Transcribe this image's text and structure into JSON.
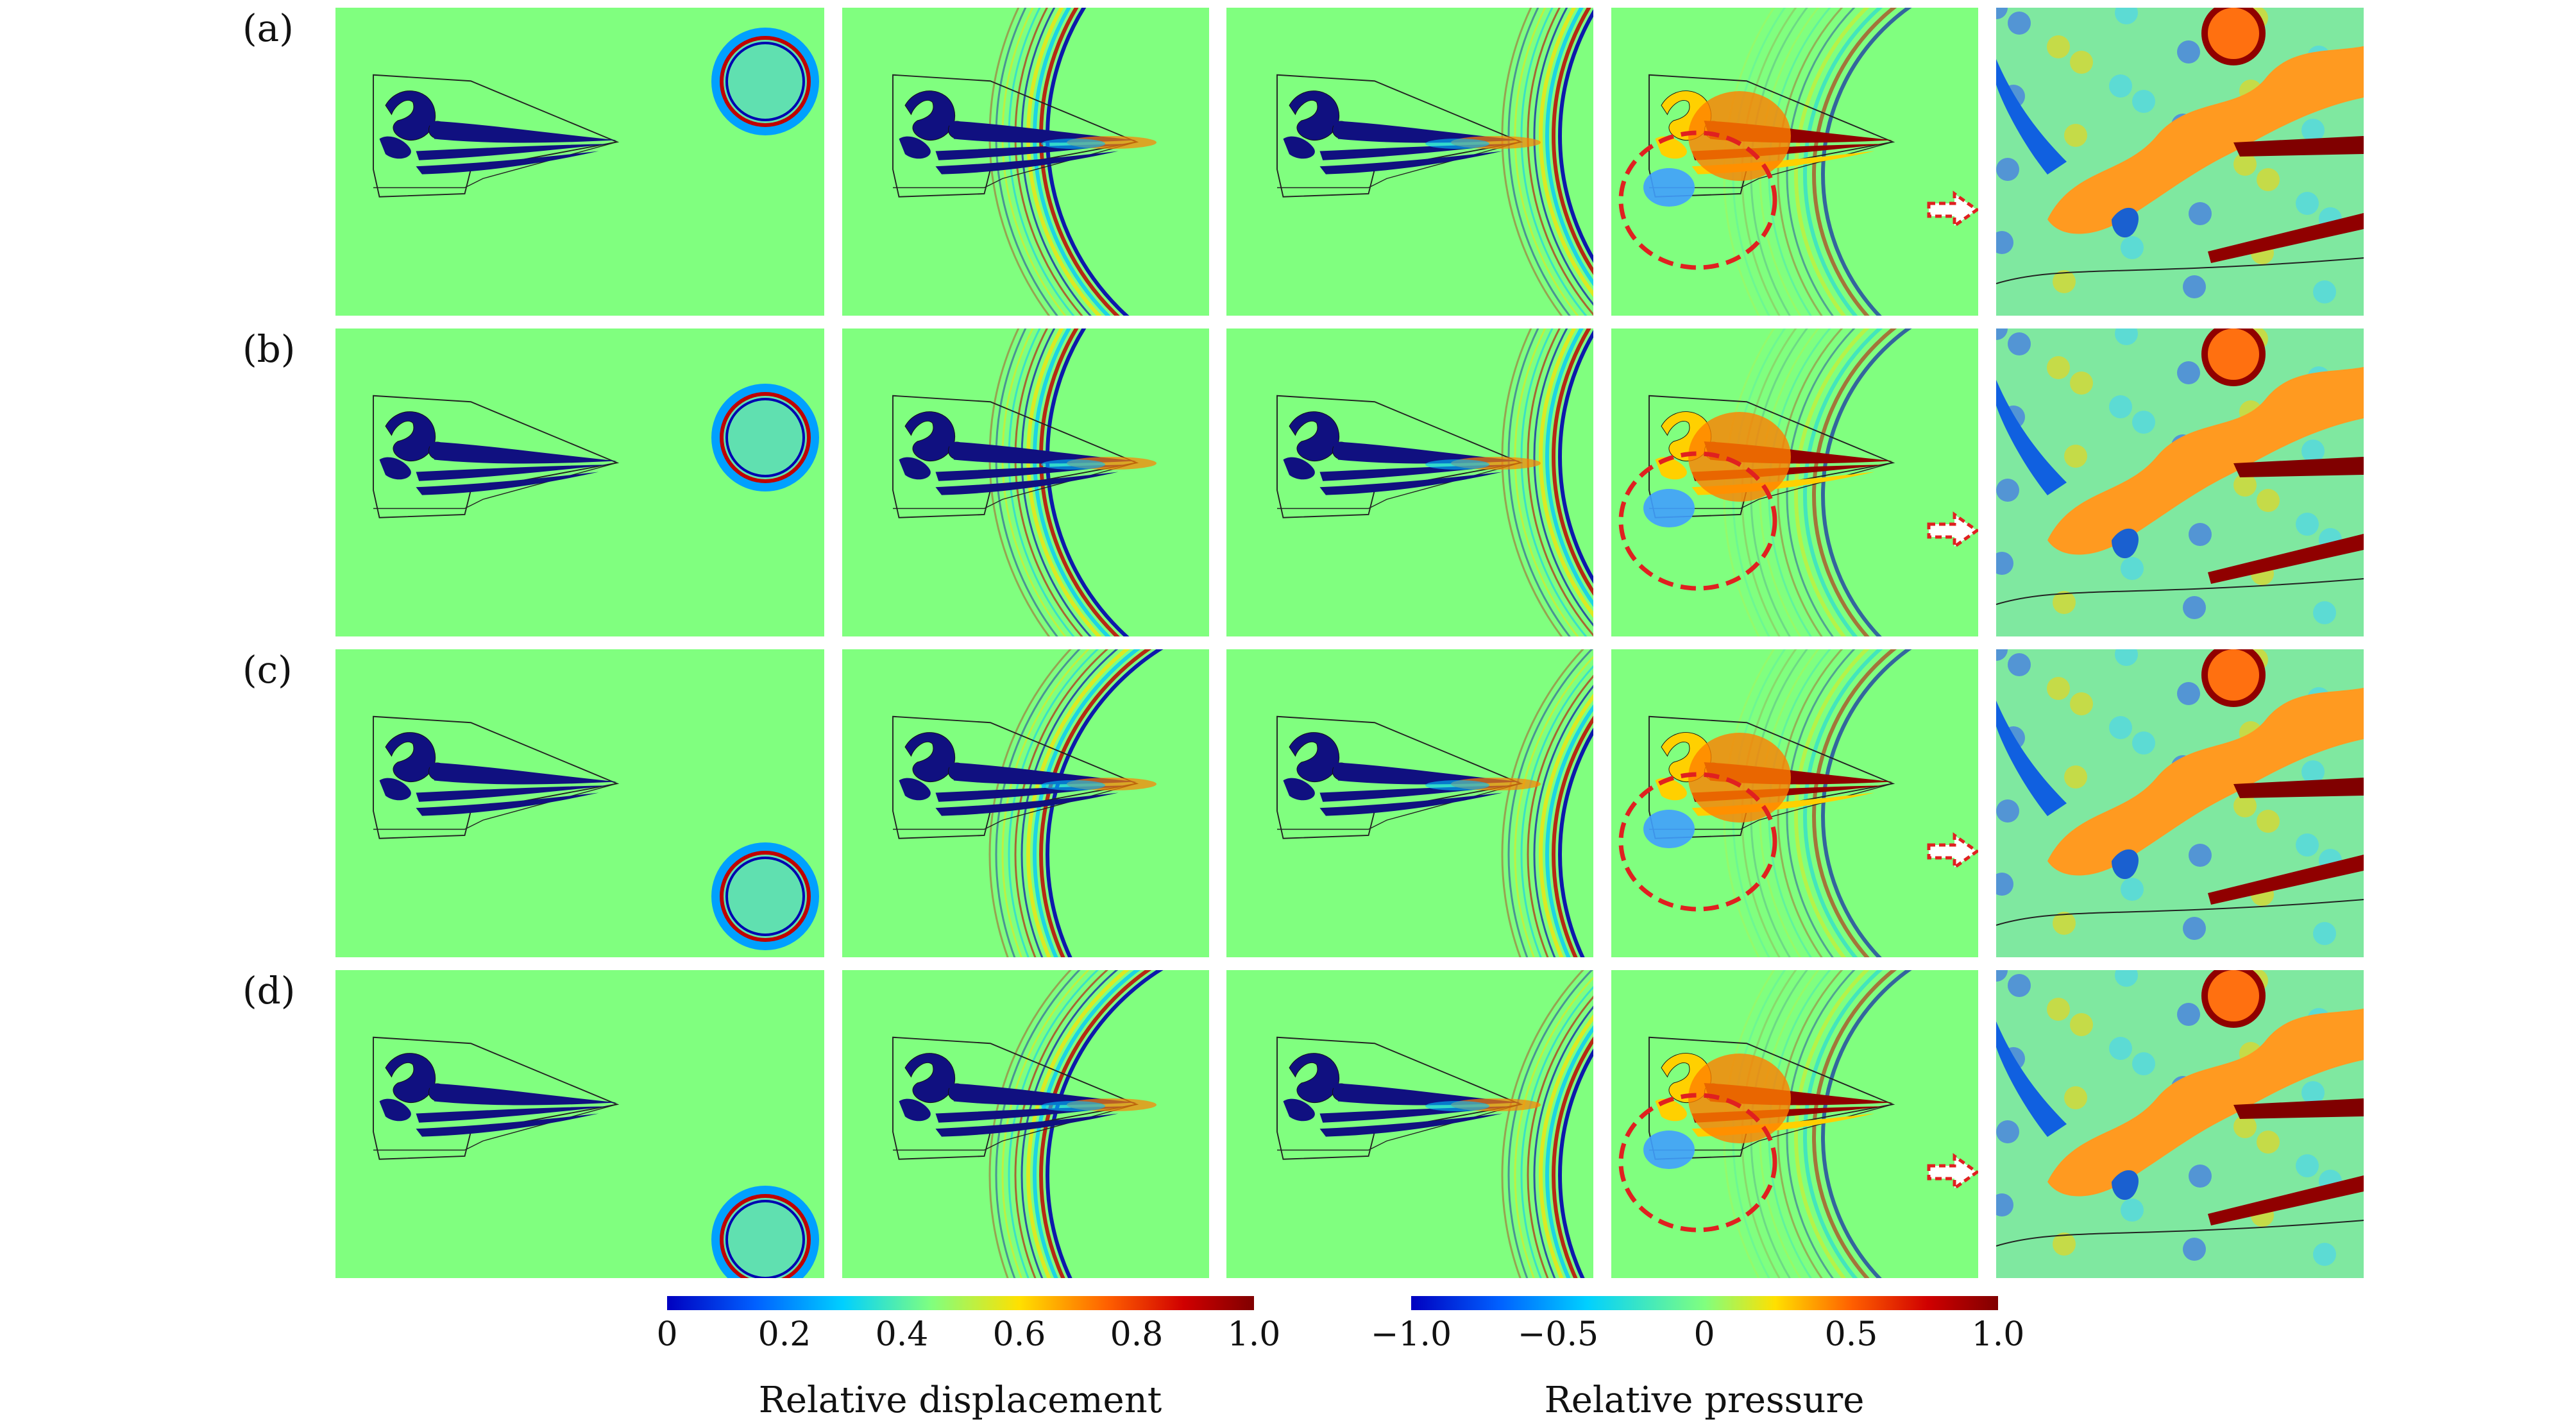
{
  "rows": [
    {
      "label": "(a)"
    },
    {
      "label": "(b)"
    },
    {
      "label": "(c)"
    },
    {
      "label": "(d)"
    }
  ],
  "colorbars": {
    "displacement": {
      "title": "Relative displacement",
      "ticks": [
        "0",
        "0.2",
        "0.4",
        "0.6",
        "0.8",
        "1.0"
      ],
      "range": [
        0,
        1.0
      ]
    },
    "pressure": {
      "title": "Relative pressure",
      "ticks": [
        "−1.0",
        "−0.5",
        "0",
        "0.5",
        "1.0"
      ],
      "range": [
        -1.0,
        1.0
      ]
    }
  },
  "colors": {
    "background_field": "#80ff7f",
    "bone": "#101080",
    "annotation": "#e02020",
    "jet": [
      "#00008f",
      "#0040ff",
      "#00c0ff",
      "#80ff7f",
      "#ffe000",
      "#ff6000",
      "#c00000",
      "#800000"
    ]
  }
}
